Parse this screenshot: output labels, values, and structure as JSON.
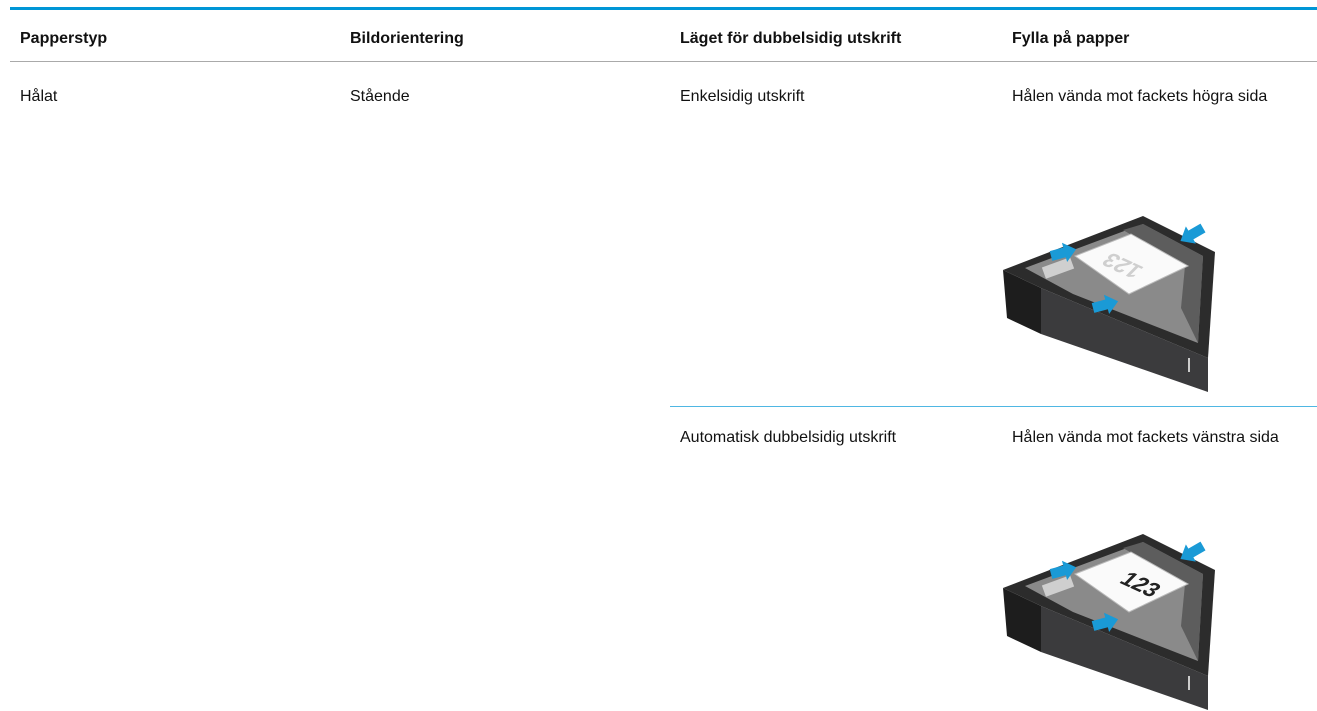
{
  "table": {
    "headers": [
      "Papperstyp",
      "Bildorientering",
      "Läget för dubbelsidig utskrift",
      "Fylla på papper"
    ],
    "rows": [
      {
        "paper_type": "Hålat",
        "orientation": "Stående",
        "duplex_mode": "Enkelsidig utskrift",
        "loading": "Hålen vända mot fackets högra sida",
        "illustration_text": "123"
      },
      {
        "duplex_mode": "Automatisk dubbelsidig utskrift",
        "loading": "Hålen vända mot fackets vänstra sida",
        "illustration_text": "123"
      }
    ]
  }
}
